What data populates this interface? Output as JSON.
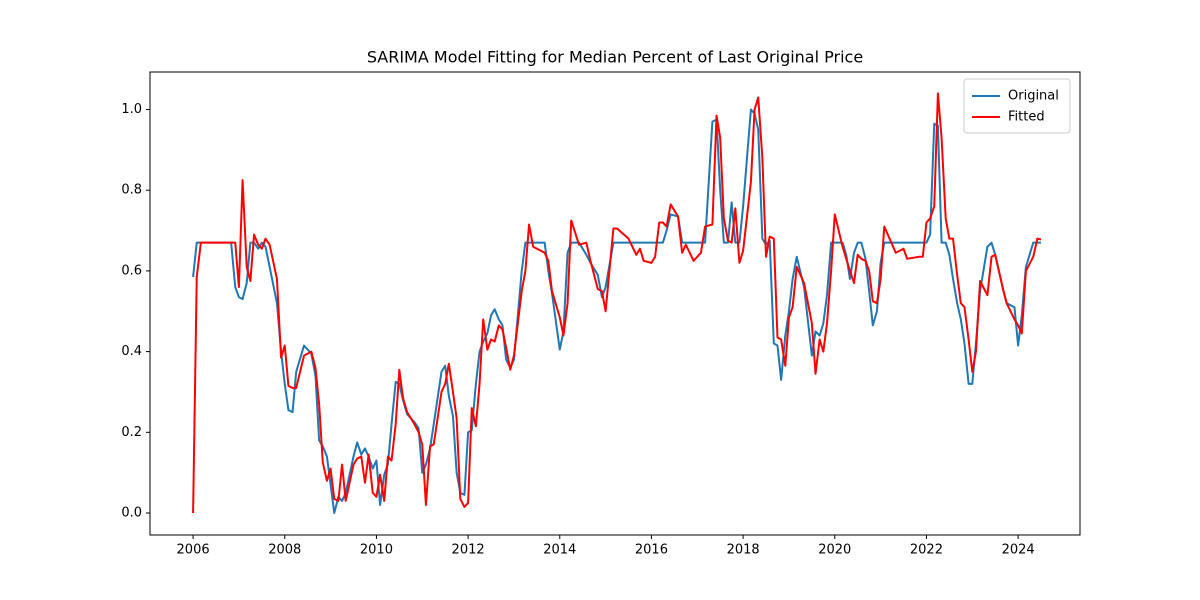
{
  "chart_data": {
    "type": "line",
    "title": "SARIMA Model Fitting for Median Percent of Last Original Price",
    "x": [
      2006.0,
      2006.08,
      2006.17,
      2006.5,
      2006.83,
      2006.92,
      2007.0,
      2007.08,
      2007.17,
      2007.25,
      2007.33,
      2007.42,
      2007.5,
      2007.58,
      2007.67,
      2007.83,
      2007.92,
      2008.0,
      2008.08,
      2008.17,
      2008.25,
      2008.42,
      2008.58,
      2008.67,
      2008.75,
      2008.83,
      2008.92,
      2009.0,
      2009.08,
      2009.17,
      2009.25,
      2009.33,
      2009.5,
      2009.58,
      2009.67,
      2009.75,
      2009.83,
      2009.92,
      2010.0,
      2010.08,
      2010.17,
      2010.25,
      2010.33,
      2010.42,
      2010.5,
      2010.58,
      2010.67,
      2010.83,
      2010.92,
      2011.0,
      2011.08,
      2011.17,
      2011.25,
      2011.42,
      2011.5,
      2011.58,
      2011.67,
      2011.75,
      2011.83,
      2011.92,
      2012.0,
      2012.08,
      2012.17,
      2012.25,
      2012.33,
      2012.42,
      2012.5,
      2012.58,
      2012.67,
      2012.75,
      2012.83,
      2012.92,
      2013.0,
      2013.17,
      2013.25,
      2013.33,
      2013.42,
      2013.67,
      2013.75,
      2013.83,
      2014.0,
      2014.08,
      2014.17,
      2014.25,
      2014.42,
      2014.58,
      2014.67,
      2014.83,
      2014.92,
      2015.0,
      2015.17,
      2015.25,
      2015.5,
      2015.67,
      2015.75,
      2015.83,
      2016.0,
      2016.08,
      2016.17,
      2016.25,
      2016.33,
      2016.42,
      2016.58,
      2016.67,
      2016.75,
      2016.92,
      2017.0,
      2017.08,
      2017.17,
      2017.33,
      2017.42,
      2017.5,
      2017.58,
      2017.67,
      2017.75,
      2017.83,
      2017.92,
      2018.0,
      2018.17,
      2018.25,
      2018.33,
      2018.42,
      2018.5,
      2018.58,
      2018.67,
      2018.75,
      2018.83,
      2018.92,
      2019.0,
      2019.08,
      2019.17,
      2019.33,
      2019.5,
      2019.58,
      2019.67,
      2019.75,
      2019.83,
      2019.92,
      2020.0,
      2020.17,
      2020.25,
      2020.33,
      2020.42,
      2020.5,
      2020.58,
      2020.67,
      2020.75,
      2020.83,
      2020.92,
      2021.0,
      2021.08,
      2021.33,
      2021.5,
      2021.58,
      2021.83,
      2021.92,
      2022.0,
      2022.08,
      2022.17,
      2022.25,
      2022.33,
      2022.42,
      2022.5,
      2022.58,
      2022.67,
      2022.75,
      2022.83,
      2022.92,
      2023.0,
      2023.08,
      2023.17,
      2023.33,
      2023.42,
      2023.5,
      2023.67,
      2023.75,
      2023.92,
      2024.0,
      2024.08,
      2024.17,
      2024.33,
      2024.42,
      2024.5
    ],
    "series": [
      {
        "name": "Original",
        "color": "#1f77b4",
        "values": [
          0.585,
          0.67,
          0.67,
          0.67,
          0.67,
          0.56,
          0.535,
          0.53,
          0.57,
          0.67,
          0.67,
          0.655,
          0.67,
          0.66,
          0.61,
          0.52,
          0.4,
          0.32,
          0.255,
          0.25,
          0.35,
          0.415,
          0.395,
          0.34,
          0.18,
          0.165,
          0.14,
          0.07,
          0.0,
          0.04,
          0.03,
          0.05,
          0.14,
          0.175,
          0.145,
          0.16,
          0.14,
          0.11,
          0.13,
          0.02,
          0.095,
          0.12,
          0.22,
          0.325,
          0.32,
          0.28,
          0.245,
          0.225,
          0.21,
          0.1,
          0.12,
          0.16,
          0.22,
          0.35,
          0.365,
          0.29,
          0.24,
          0.1,
          0.05,
          0.045,
          0.2,
          0.205,
          0.32,
          0.4,
          0.425,
          0.445,
          0.49,
          0.505,
          0.48,
          0.465,
          0.38,
          0.36,
          0.38,
          0.6,
          0.67,
          0.67,
          0.67,
          0.67,
          0.6,
          0.545,
          0.405,
          0.45,
          0.645,
          0.67,
          0.67,
          0.64,
          0.62,
          0.59,
          0.535,
          0.56,
          0.67,
          0.67,
          0.67,
          0.67,
          0.67,
          0.67,
          0.67,
          0.67,
          0.67,
          0.67,
          0.7,
          0.74,
          0.735,
          0.67,
          0.67,
          0.67,
          0.67,
          0.67,
          0.67,
          0.97,
          0.975,
          0.8,
          0.67,
          0.67,
          0.77,
          0.67,
          0.67,
          0.76,
          1.0,
          0.99,
          0.95,
          0.68,
          0.665,
          0.675,
          0.42,
          0.415,
          0.33,
          0.44,
          0.5,
          0.58,
          0.635,
          0.56,
          0.39,
          0.45,
          0.44,
          0.47,
          0.54,
          0.67,
          0.67,
          0.67,
          0.64,
          0.58,
          0.645,
          0.67,
          0.67,
          0.63,
          0.55,
          0.465,
          0.5,
          0.62,
          0.67,
          0.67,
          0.67,
          0.67,
          0.67,
          0.67,
          0.67,
          0.69,
          0.965,
          0.96,
          0.67,
          0.67,
          0.64,
          0.58,
          0.52,
          0.48,
          0.42,
          0.32,
          0.32,
          0.42,
          0.55,
          0.66,
          0.67,
          0.64,
          0.555,
          0.52,
          0.51,
          0.415,
          0.49,
          0.61,
          0.67,
          0.67,
          0.67
        ]
      },
      {
        "name": "Fitted",
        "color": "#ff0000",
        "values": [
          0.0,
          0.585,
          0.67,
          0.67,
          0.67,
          0.67,
          0.56,
          0.825,
          0.61,
          0.575,
          0.69,
          0.665,
          0.655,
          0.68,
          0.665,
          0.58,
          0.385,
          0.415,
          0.315,
          0.31,
          0.31,
          0.39,
          0.4,
          0.36,
          0.27,
          0.125,
          0.08,
          0.11,
          0.035,
          0.03,
          0.12,
          0.03,
          0.12,
          0.135,
          0.14,
          0.075,
          0.145,
          0.05,
          0.04,
          0.095,
          0.03,
          0.14,
          0.13,
          0.22,
          0.355,
          0.285,
          0.25,
          0.22,
          0.2,
          0.17,
          0.02,
          0.165,
          0.17,
          0.3,
          0.32,
          0.37,
          0.3,
          0.235,
          0.035,
          0.015,
          0.025,
          0.26,
          0.215,
          0.32,
          0.48,
          0.405,
          0.43,
          0.425,
          0.465,
          0.455,
          0.41,
          0.355,
          0.39,
          0.55,
          0.6,
          0.715,
          0.66,
          0.645,
          0.625,
          0.55,
          0.485,
          0.44,
          0.52,
          0.725,
          0.665,
          0.67,
          0.625,
          0.555,
          0.55,
          0.5,
          0.705,
          0.705,
          0.68,
          0.64,
          0.655,
          0.625,
          0.62,
          0.635,
          0.72,
          0.72,
          0.71,
          0.765,
          0.735,
          0.645,
          0.665,
          0.625,
          0.635,
          0.645,
          0.71,
          0.715,
          0.985,
          0.93,
          0.73,
          0.675,
          0.67,
          0.755,
          0.62,
          0.65,
          0.82,
          1.0,
          1.03,
          0.88,
          0.635,
          0.685,
          0.68,
          0.435,
          0.43,
          0.365,
          0.485,
          0.51,
          0.61,
          0.57,
          0.47,
          0.345,
          0.43,
          0.4,
          0.47,
          0.6,
          0.74,
          0.66,
          0.63,
          0.6,
          0.57,
          0.64,
          0.63,
          0.625,
          0.6,
          0.525,
          0.52,
          0.58,
          0.71,
          0.645,
          0.655,
          0.63,
          0.635,
          0.635,
          0.72,
          0.73,
          0.76,
          1.04,
          0.93,
          0.73,
          0.68,
          0.68,
          0.59,
          0.52,
          0.51,
          0.43,
          0.35,
          0.4,
          0.575,
          0.54,
          0.635,
          0.64,
          0.555,
          0.52,
          0.48,
          0.465,
          0.445,
          0.6,
          0.635,
          0.68,
          0.678
        ]
      }
    ],
    "xlim": [
      2005.06,
      2025.35
    ],
    "ylim": [
      -0.0545,
      1.093
    ],
    "xticks": [
      2006,
      2008,
      2010,
      2012,
      2014,
      2016,
      2018,
      2020,
      2022,
      2024
    ],
    "yticks": [
      {
        "value": 0,
        "label": "0.0"
      },
      0.2,
      0.4,
      0.6,
      0.8,
      {
        "value": 1,
        "label": "1.0"
      }
    ],
    "legend": "upper right"
  }
}
